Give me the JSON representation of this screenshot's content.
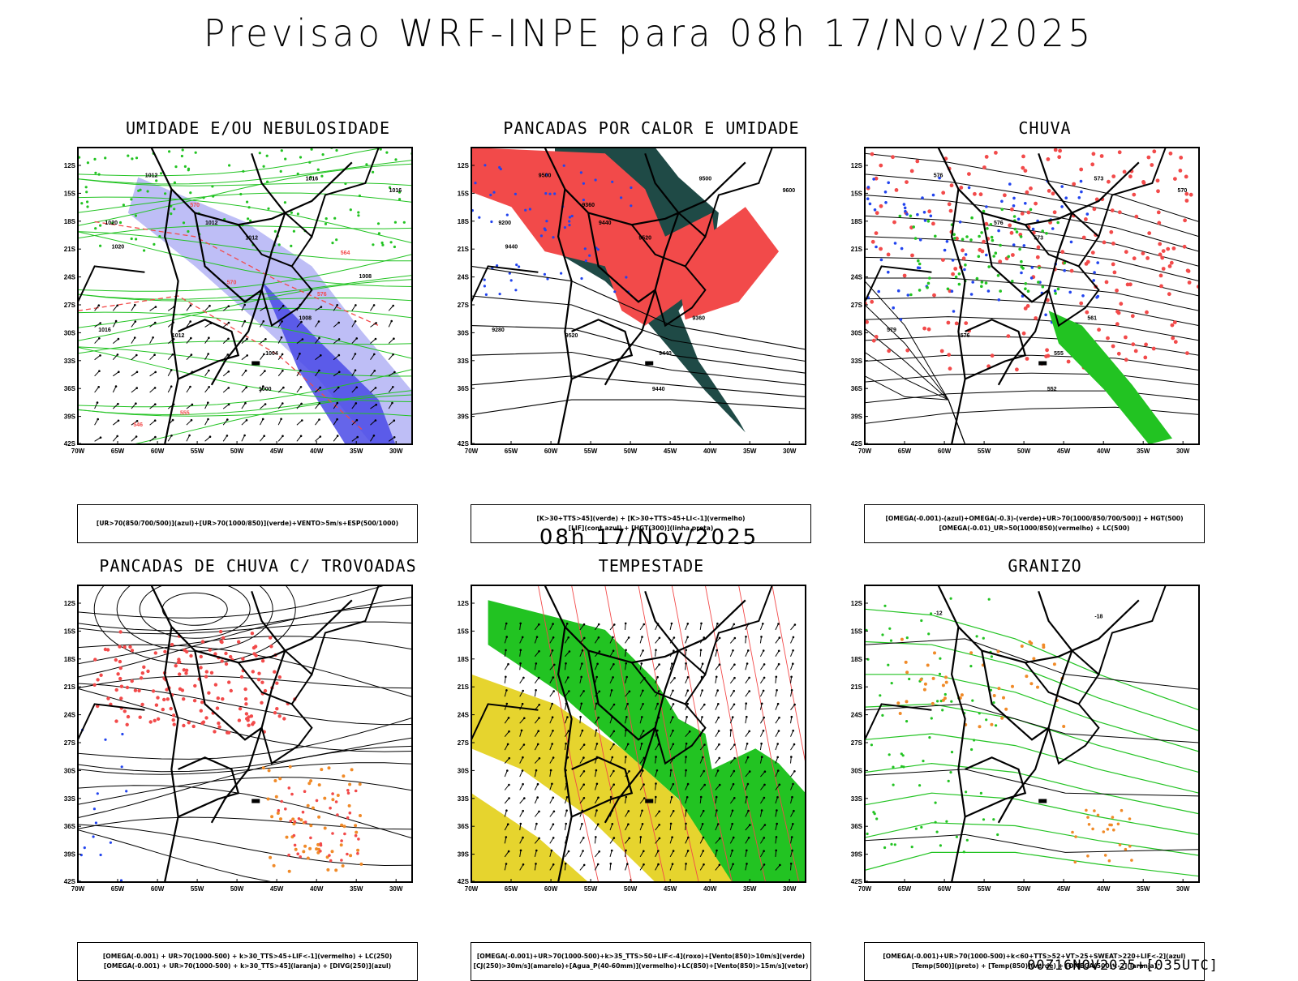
{
  "page": {
    "title": "Previsao WRF-INPE  para 08h 17/Nov/2025",
    "subtitle": "08h 17/Nov/2025",
    "footer": "00Z16NOV2025+[035UTC]"
  },
  "axes": {
    "lat_labels": [
      "12S",
      "15S",
      "18S",
      "21S",
      "24S",
      "27S",
      "30S",
      "33S",
      "36S",
      "39S",
      "42S"
    ],
    "lon_labels": [
      "70W",
      "65W",
      "60W",
      "55W",
      "50W",
      "45W",
      "40W",
      "35W",
      "30W"
    ]
  },
  "panels": [
    {
      "title": "UMIDADE E/OU NEBULOSIDADE",
      "legend": [
        "[UR>70(850/700/500)](azul)+[UR>70(1000/850)](verde)+VENTO>5m/s+ESP(500/1000)"
      ],
      "labels": [
        "1012",
        "1016",
        "1016",
        "1012",
        "1012",
        "1008",
        "1004",
        "1000",
        "1012",
        "1016",
        "1020",
        "1020",
        "570",
        "570",
        "576",
        "564",
        "555",
        "546",
        "1008"
      ]
    },
    {
      "title": "PANCADAS POR CALOR E UMIDADE",
      "legend": [
        "[K>30+TTS>45](verde) + [K>30+TTS>45+LI<-1](vermelho)",
        "[LIF](cont.azul) + [HGT(300)](linha preta)"
      ],
      "labels": [
        "9500",
        "9500",
        "9600",
        "9440",
        "9520",
        "9360",
        "9440",
        "9440",
        "9520",
        "9280",
        "9200",
        "9440",
        "9360"
      ]
    },
    {
      "title": "CHUVA",
      "legend": [
        "[OMEGA(-0.001)-(azul)+OMEGA(-0.3)-(verde)+UR>70(1000/850/700/500)] + HGT(500)",
        "[OMEGA(-0.01)_UR>50(1000/850)(vermelho) + LC(500)"
      ],
      "labels": [
        "576",
        "573",
        "570",
        "576",
        "573",
        "561",
        "555",
        "552",
        "576",
        "579"
      ]
    },
    {
      "title": "PANCADAS DE CHUVA C/ TROVOADAS",
      "legend": [
        "[OMEGA(-0.001) + UR>70(1000-500) + k>30_TTS>45+LIF<-1](vermelho) + LC(250)",
        "[OMEGA(-0.001) + UR>70(1000-500) + k>30_TTS>45](laranja) + [DIVG(250)](azul)"
      ],
      "labels": []
    },
    {
      "title": "TEMPESTADE",
      "legend": [
        "[OMEGA(-0.001)+UR>70(1000-500)+k>35_TTS>50+LIF<-4](roxo)+[Vento(850)>10m/s](verde)",
        "[CJ(250)>30m/s](amarelo)+[Agua_P(40-60mm)](vermelho)+LC(850)+[Vento(850)>15m/s](vetor)"
      ],
      "labels": []
    },
    {
      "title": "GRANIZO",
      "legend": [
        "[OMEGA(-0.001)+UR>70(1000-500)+k<60+TTS>52+VT>25+SWEAT>220+LIF<-2](azul)",
        "[Temp(500)](preto) + [Temp(850)](verde) + [OMEGA(500)<-2](laranja)"
      ],
      "labels": [
        "-12",
        "-18"
      ]
    }
  ],
  "colors": {
    "red": "#f24a4a",
    "green": "#22c322",
    "blue": "#2244ee",
    "lightblue": "#b7b7f5",
    "darkteal": "#1f4a46",
    "yellow": "#e6d42e",
    "orange": "#f08a28"
  }
}
